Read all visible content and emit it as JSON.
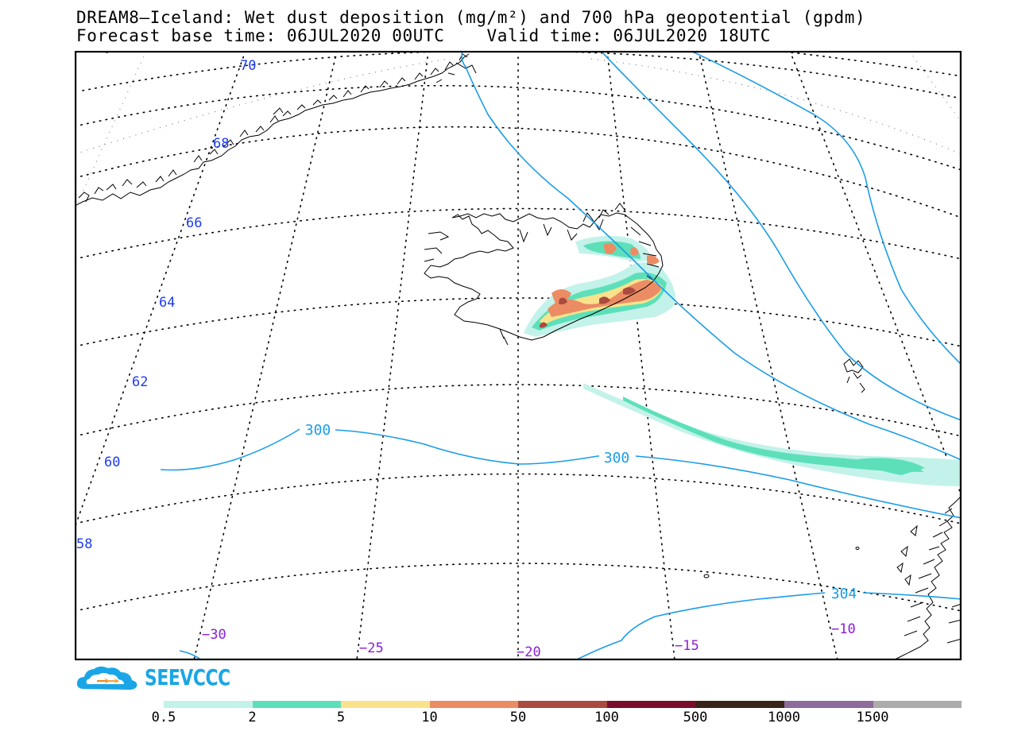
{
  "header": {
    "title_line1": "DREAM8—Iceland: Wet dust deposition (mg/m²) and 700 hPa geopotential (gpdm)",
    "title_line2": "Forecast base time: 06JUL2020 00UTC    Valid time: 06JUL2020 18UTC"
  },
  "map": {
    "latitude_labels": [
      "70",
      "68",
      "66",
      "64",
      "62",
      "60",
      "58"
    ],
    "longitude_labels": [
      "−30",
      "−25",
      "−20",
      "−15",
      "−10"
    ],
    "contour_labels": [
      "300",
      "300",
      "304"
    ],
    "colors": {
      "contour_line": "#1a9de8",
      "coastline": "#000000",
      "lat_label": "#1e3cf0",
      "lon_label": "#8a1ed6"
    }
  },
  "logo": {
    "text": "SEEVCCC",
    "color": "#1aa6e6"
  },
  "legend": {
    "colors": [
      "#c3f2ea",
      "#5de0b9",
      "#f8e38c",
      "#eb8c65",
      "#a94b3f",
      "#7a0d2c",
      "#3a2418",
      "#8f6b9b",
      "#acacac"
    ],
    "labels": [
      "0.5",
      "2",
      "5",
      "10",
      "50",
      "100",
      "500",
      "1000",
      "1500"
    ]
  }
}
